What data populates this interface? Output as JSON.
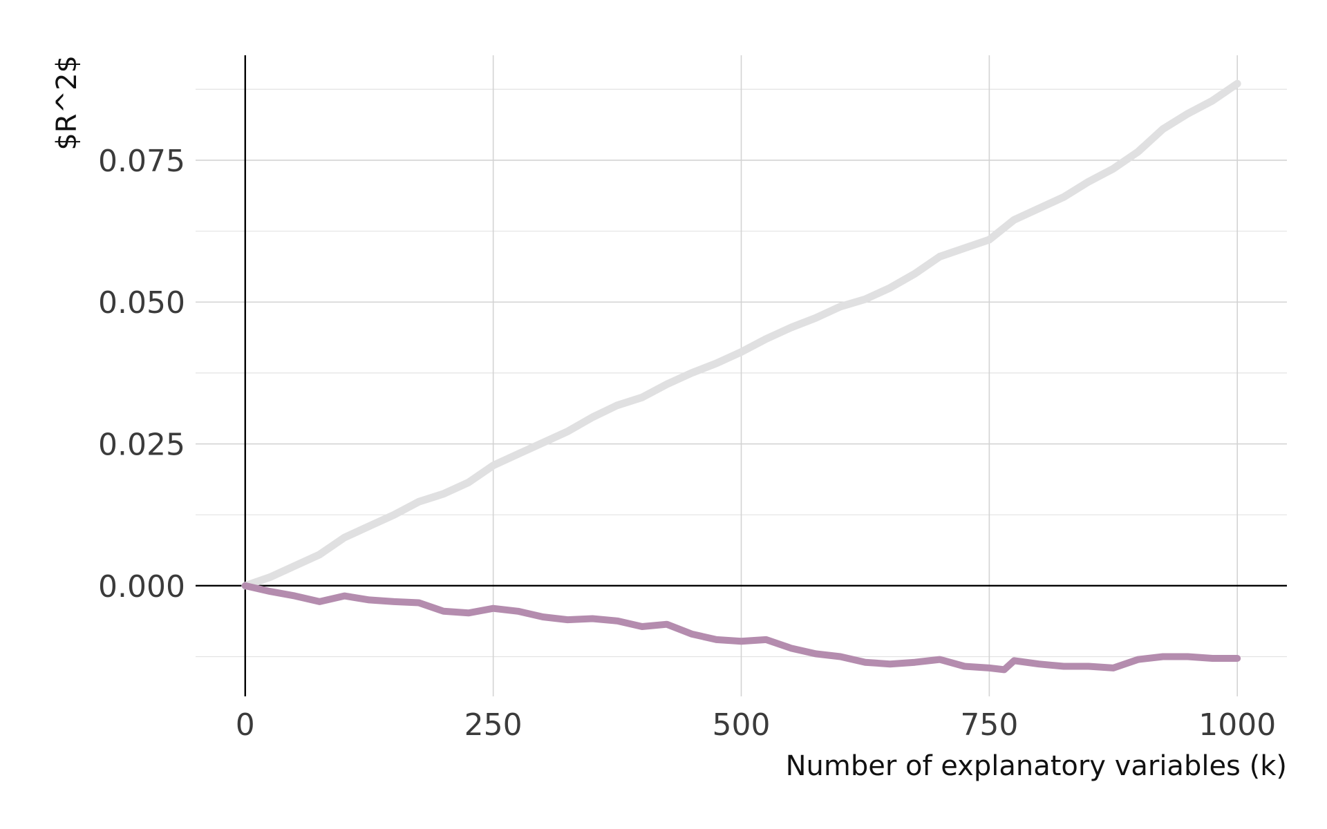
{
  "chart_data": {
    "type": "line",
    "title": "",
    "xlabel": "Number of explanatory variables (k)",
    "ylabel": "$R^2$",
    "xlim": [
      -50,
      1050
    ],
    "ylim": [
      -0.0195,
      0.0935
    ],
    "x_ticks": [
      0,
      250,
      500,
      750,
      1000
    ],
    "x_tick_labels": [
      "0",
      "250",
      "500",
      "750",
      "1000"
    ],
    "y_ticks": [
      0.0,
      0.025,
      0.05,
      0.075
    ],
    "y_tick_labels": [
      "0.000",
      "0.025",
      "0.050",
      "0.075"
    ],
    "y_minor_ticks": [
      -0.0125,
      0.0125,
      0.0375,
      0.0625,
      0.0875
    ],
    "x_minor_ticks": [],
    "grid": true,
    "legend": "none",
    "series": [
      {
        "color": "#e0e0e1",
        "x": [
          0,
          25,
          50,
          75,
          100,
          125,
          150,
          175,
          200,
          225,
          250,
          275,
          300,
          325,
          350,
          375,
          400,
          425,
          450,
          475,
          500,
          525,
          550,
          575,
          600,
          625,
          650,
          675,
          700,
          725,
          750,
          775,
          800,
          825,
          850,
          875,
          900,
          925,
          950,
          975,
          1000
        ],
        "y": [
          0.0,
          0.0015,
          0.0035,
          0.0055,
          0.0085,
          0.0105,
          0.0125,
          0.0148,
          0.0162,
          0.0182,
          0.0212,
          0.0232,
          0.0252,
          0.0272,
          0.0297,
          0.0318,
          0.0332,
          0.0355,
          0.0375,
          0.0392,
          0.0412,
          0.0435,
          0.0455,
          0.0472,
          0.0492,
          0.0505,
          0.0525,
          0.055,
          0.058,
          0.0595,
          0.061,
          0.0645,
          0.0665,
          0.0685,
          0.0712,
          0.0735,
          0.0765,
          0.0805,
          0.0832,
          0.0855,
          0.0885
        ]
      },
      {
        "color": "#b48cae",
        "x": [
          0,
          25,
          50,
          75,
          100,
          125,
          150,
          175,
          200,
          225,
          250,
          275,
          300,
          325,
          350,
          375,
          400,
          425,
          450,
          475,
          500,
          525,
          550,
          575,
          600,
          625,
          650,
          675,
          700,
          725,
          750,
          765,
          775,
          800,
          825,
          850,
          875,
          900,
          925,
          950,
          975,
          1000
        ],
        "y": [
          0.0,
          -0.001,
          -0.0018,
          -0.0028,
          -0.0018,
          -0.0025,
          -0.0028,
          -0.003,
          -0.0045,
          -0.0048,
          -0.004,
          -0.0045,
          -0.0055,
          -0.006,
          -0.0058,
          -0.0062,
          -0.0072,
          -0.0068,
          -0.0085,
          -0.0095,
          -0.0098,
          -0.0095,
          -0.011,
          -0.012,
          -0.0125,
          -0.0135,
          -0.0138,
          -0.0135,
          -0.013,
          -0.0142,
          -0.0145,
          -0.0148,
          -0.0132,
          -0.0138,
          -0.0142,
          -0.0142,
          -0.0145,
          -0.013,
          -0.0125,
          -0.0125,
          -0.0128,
          -0.0128
        ]
      }
    ]
  }
}
